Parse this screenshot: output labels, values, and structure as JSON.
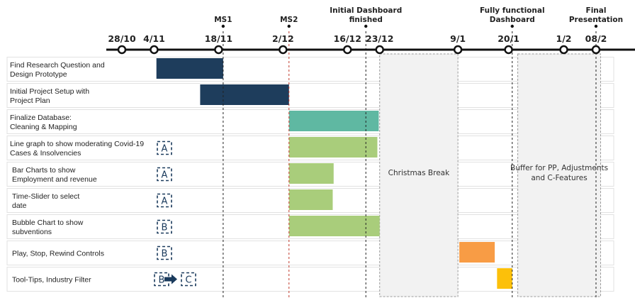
{
  "timeline": {
    "ticks": [
      {
        "label": "28/10",
        "day": 0
      },
      {
        "label": "4/11",
        "day": 7
      },
      {
        "label": "18/11",
        "day": 21
      },
      {
        "label": "2/12",
        "day": 35
      },
      {
        "label": "16/12",
        "day": 49
      },
      {
        "label": "23/12",
        "day": 56
      },
      {
        "label": "9/1",
        "day": 73
      },
      {
        "label": "20/1",
        "day": 84
      },
      {
        "label": "1/2",
        "day": 96
      },
      {
        "label": "08/2",
        "day": 103
      }
    ]
  },
  "milestones": [
    {
      "lines": [
        "MS1"
      ],
      "day": 22,
      "line_color": "#222222"
    },
    {
      "lines": [
        "MS2"
      ],
      "day": 36.3,
      "line_color": "#c0392b"
    },
    {
      "lines": [
        "Initial Dashboard",
        "finished"
      ],
      "day": 53,
      "line_color": "#222222"
    },
    {
      "lines": [
        "Fully functional",
        "Dashboard"
      ],
      "day": 84.8,
      "line_color": "#222222"
    },
    {
      "lines": [
        "Final",
        "Presentation"
      ],
      "day": 103,
      "line_color": "#222222"
    }
  ],
  "bands": [
    {
      "lines": [
        "Christmas Break"
      ],
      "start_day": 56,
      "end_day": 73
    },
    {
      "lines": [
        "Buffer for PP, Adjustments",
        "and C-Features"
      ],
      "start_day": 86,
      "end_day": 104
    }
  ],
  "tasks": [
    {
      "lines": [
        "Find Research Question and",
        "Design Prototype"
      ],
      "tags": [],
      "start_day": 7.5,
      "end_day": 22,
      "color": "#1e3d5c"
    },
    {
      "lines": [
        "Initial Project Setup with",
        "Project Plan"
      ],
      "tags": [],
      "start_day": 17,
      "end_day": 36.3,
      "color": "#1e3d5c"
    },
    {
      "lines": [
        "Finalize Database:",
        "Cleaning & Mapping"
      ],
      "tags": [],
      "start_day": 36.3,
      "end_day": 55.8,
      "color": "#5fb8a2"
    },
    {
      "lines": [
        "Line graph to show moderating Covid-19",
        "Cases & Insolvencies"
      ],
      "tags": [
        "A"
      ],
      "start_day": 36.3,
      "end_day": 55.5,
      "color": "#a9cd7b"
    },
    {
      "lines": [
        "Bar Charts to show",
        "Employment and revenue"
      ],
      "tags": [
        "A"
      ],
      "start_day": 36.3,
      "end_day": 46,
      "color": "#a9cd7b"
    },
    {
      "lines": [
        "Time-Slider to select",
        "date"
      ],
      "tags": [
        "A"
      ],
      "start_day": 36.3,
      "end_day": 45.8,
      "color": "#a9cd7b"
    },
    {
      "lines": [
        "Bubble Chart to show",
        "subventions"
      ],
      "tags": [
        "B"
      ],
      "start_day": 36.3,
      "end_day": 56,
      "color": "#a9cd7b"
    },
    {
      "lines": [
        "Play, Stop, Rewind Controls"
      ],
      "tags": [
        "B"
      ],
      "start_day": 73.3,
      "end_day": 81,
      "color": "#f89c45"
    },
    {
      "lines": [
        "Tool-Tips, Industry Filter"
      ],
      "tags": [
        "B",
        "C"
      ],
      "start_day": 81.5,
      "end_day": 84.8,
      "color": "#fcc00a"
    }
  ],
  "colors": {
    "axis": "#111111",
    "row_border": "#e2e2e2",
    "band_fill": "#f2f2f2",
    "band_border": "#9a9a9a",
    "tag": "#1a3a5c",
    "arrow": "#1a3a5c"
  }
}
